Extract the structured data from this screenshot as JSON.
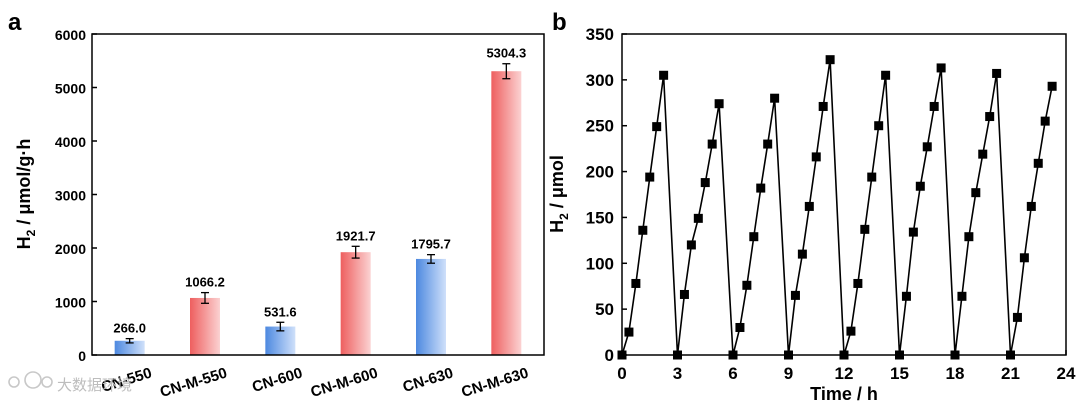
{
  "watermark": "大数据环境",
  "chart_data": [
    {
      "panel": "a",
      "type": "bar",
      "categories": [
        "CN-550",
        "CN-M-550",
        "CN-600",
        "CN-M-600",
        "CN-630",
        "CN-M-630"
      ],
      "values": [
        266.0,
        1066.2,
        531.6,
        1921.7,
        1795.7,
        5304.3
      ],
      "value_labels": [
        "266.0",
        "1066.2",
        "531.6",
        "1921.7",
        "1795.7",
        "5304.3"
      ],
      "errors": [
        40,
        100,
        80,
        110,
        80,
        140
      ],
      "bar_colors": [
        "#5b96e6",
        "#ef6b6b",
        "#5b96e6",
        "#ef6b6b",
        "#5b96e6",
        "#ef6b6b"
      ],
      "ylabel_main": "H",
      "ylabel_sub": "2",
      "ylabel_rest": " / μmol/g·h",
      "xlabel": "",
      "ylim": [
        0,
        6000
      ],
      "yticks": [
        "0",
        "1000",
        "2000",
        "3000",
        "4000",
        "5000",
        "6000"
      ]
    },
    {
      "panel": "b",
      "type": "line",
      "cycles": [
        [
          [
            0,
            0
          ],
          [
            0.375,
            25
          ],
          [
            0.75,
            78
          ],
          [
            1.125,
            136
          ],
          [
            1.5,
            194
          ],
          [
            1.875,
            249
          ],
          [
            2.25,
            305
          ]
        ],
        [
          [
            3,
            0
          ],
          [
            3.375,
            66
          ],
          [
            3.75,
            120
          ],
          [
            4.125,
            149
          ],
          [
            4.5,
            188
          ],
          [
            4.875,
            230
          ],
          [
            5.25,
            274
          ]
        ],
        [
          [
            6,
            0
          ],
          [
            6.375,
            30
          ],
          [
            6.75,
            76
          ],
          [
            7.125,
            129
          ],
          [
            7.5,
            182
          ],
          [
            7.875,
            230
          ],
          [
            8.25,
            280
          ]
        ],
        [
          [
            9,
            0
          ],
          [
            9.375,
            65
          ],
          [
            9.75,
            110
          ],
          [
            10.125,
            162
          ],
          [
            10.5,
            216
          ],
          [
            10.875,
            271
          ],
          [
            11.25,
            322
          ]
        ],
        [
          [
            12,
            0
          ],
          [
            12.375,
            26
          ],
          [
            12.75,
            78
          ],
          [
            13.125,
            137
          ],
          [
            13.5,
            194
          ],
          [
            13.875,
            250
          ],
          [
            14.25,
            305
          ]
        ],
        [
          [
            15,
            0
          ],
          [
            15.375,
            64
          ],
          [
            15.75,
            134
          ],
          [
            16.125,
            184
          ],
          [
            16.5,
            227
          ],
          [
            16.875,
            271
          ],
          [
            17.25,
            313
          ]
        ],
        [
          [
            18,
            0
          ],
          [
            18.375,
            64
          ],
          [
            18.75,
            129
          ],
          [
            19.125,
            177
          ],
          [
            19.5,
            219
          ],
          [
            19.875,
            260
          ],
          [
            20.25,
            307
          ]
        ],
        [
          [
            21,
            0
          ],
          [
            21.375,
            41
          ],
          [
            21.75,
            106
          ],
          [
            22.125,
            162
          ],
          [
            22.5,
            209
          ],
          [
            22.875,
            255
          ],
          [
            23.25,
            293
          ]
        ]
      ],
      "marker": "square",
      "color": "#000000",
      "xlabel": "Time / h",
      "ylabel_main": "H",
      "ylabel_sub": "2",
      "ylabel_rest": " / μmol",
      "xlim": [
        0,
        24
      ],
      "ylim": [
        0,
        350
      ],
      "xticks": [
        "0",
        "3",
        "6",
        "9",
        "12",
        "15",
        "18",
        "21",
        "24"
      ],
      "yticks": [
        "0",
        "50",
        "100",
        "150",
        "200",
        "250",
        "300",
        "350"
      ]
    }
  ]
}
